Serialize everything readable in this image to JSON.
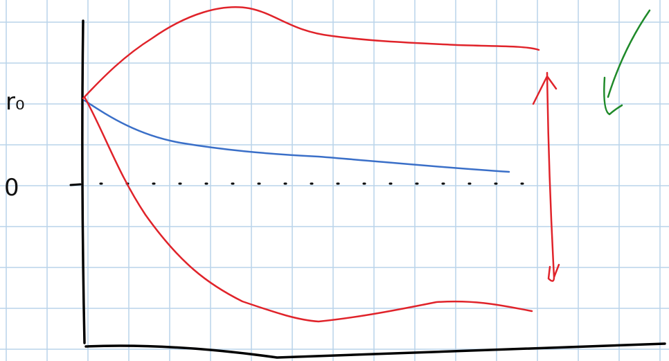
{
  "labels": {
    "top": "r₀",
    "middle": "0"
  }
}
